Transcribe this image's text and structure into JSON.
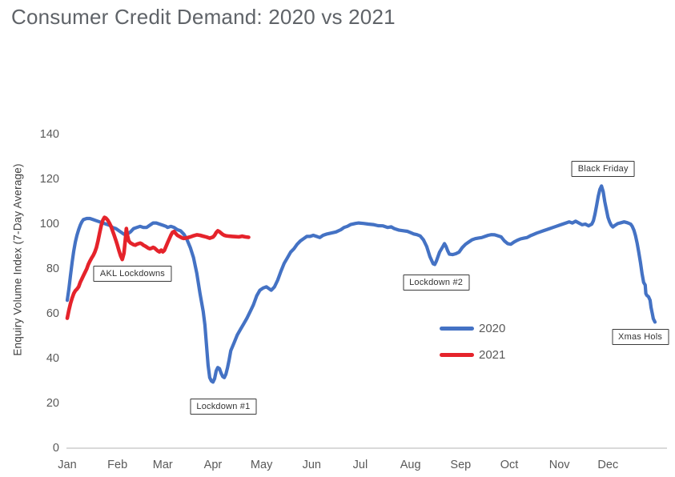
{
  "title": "Consumer Credit Demand: 2020 vs 2021",
  "colors": {
    "axis_line": "#D9D9D9",
    "text_gray": "#595959",
    "annotation_border": "#3A3A3A"
  },
  "chart_data": {
    "type": "line",
    "title": "Consumer Credit Demand: 2020 vs 2021",
    "xlabel": "",
    "ylabel": "Enquiry Volume Index (7-Day Average)",
    "x_unit": "day-of-year",
    "months": [
      "Jan",
      "Feb",
      "Mar",
      "Apr",
      "May",
      "Jun",
      "Jul",
      "Aug",
      "Sep",
      "Oct",
      "Nov",
      "Dec"
    ],
    "month_start_day": [
      0,
      31,
      59,
      90,
      120,
      151,
      181,
      212,
      243,
      273,
      304,
      334
    ],
    "y_ticks": [
      0,
      20,
      40,
      60,
      80,
      100,
      120,
      140
    ],
    "ylim": [
      0,
      140
    ],
    "grid": false,
    "legend_position": "center-right",
    "series": [
      {
        "name": "2020",
        "color": "#4472C4",
        "points": [
          [
            0,
            66
          ],
          [
            1,
            71
          ],
          [
            2,
            77
          ],
          [
            3,
            83
          ],
          [
            4,
            88
          ],
          [
            5,
            92
          ],
          [
            6,
            95
          ],
          [
            7,
            97.5
          ],
          [
            8,
            99.5
          ],
          [
            9,
            101
          ],
          [
            10,
            102
          ],
          [
            12,
            102.5
          ],
          [
            14,
            102.5
          ],
          [
            16,
            102
          ],
          [
            18,
            101.5
          ],
          [
            20,
            101
          ],
          [
            22,
            100.5
          ],
          [
            24,
            100
          ],
          [
            26,
            99.5
          ],
          [
            28,
            98.5
          ],
          [
            30,
            98
          ],
          [
            31,
            97.5
          ],
          [
            33,
            96.5
          ],
          [
            35,
            95.5
          ],
          [
            37,
            95.5
          ],
          [
            39,
            96.5
          ],
          [
            41,
            98
          ],
          [
            43,
            98.5
          ],
          [
            45,
            99
          ],
          [
            47,
            98.5
          ],
          [
            49,
            98.5
          ],
          [
            51,
            99.5
          ],
          [
            53,
            100.5
          ],
          [
            55,
            100.5
          ],
          [
            57,
            100
          ],
          [
            59,
            99.5
          ],
          [
            61,
            99
          ],
          [
            62,
            98.5
          ],
          [
            64,
            99
          ],
          [
            66,
            98.5
          ],
          [
            68,
            97.5
          ],
          [
            70,
            97
          ],
          [
            72,
            95.5
          ],
          [
            74,
            93
          ],
          [
            76,
            89.5
          ],
          [
            78,
            85
          ],
          [
            80,
            78
          ],
          [
            82,
            69
          ],
          [
            84,
            61
          ],
          [
            85,
            55
          ],
          [
            86,
            46
          ],
          [
            87,
            37
          ],
          [
            88,
            31.5
          ],
          [
            89,
            30
          ],
          [
            90,
            29.5
          ],
          [
            91,
            31
          ],
          [
            92,
            34.5
          ],
          [
            93,
            36
          ],
          [
            94,
            35.5
          ],
          [
            95,
            33.5
          ],
          [
            96,
            32
          ],
          [
            97,
            31.5
          ],
          [
            98,
            33
          ],
          [
            99,
            36
          ],
          [
            100,
            39.5
          ],
          [
            101,
            43.5
          ],
          [
            103,
            47
          ],
          [
            105,
            50.5
          ],
          [
            107,
            53
          ],
          [
            109,
            55.5
          ],
          [
            111,
            58
          ],
          [
            113,
            61
          ],
          [
            115,
            64
          ],
          [
            117,
            68
          ],
          [
            119,
            70.5
          ],
          [
            121,
            71.5
          ],
          [
            123,
            72
          ],
          [
            125,
            71
          ],
          [
            126,
            70.5
          ],
          [
            128,
            72
          ],
          [
            130,
            75
          ],
          [
            132,
            79
          ],
          [
            134,
            82.5
          ],
          [
            136,
            85
          ],
          [
            138,
            87.5
          ],
          [
            140,
            89
          ],
          [
            142,
            91
          ],
          [
            144,
            92.5
          ],
          [
            146,
            93.5
          ],
          [
            148,
            94.5
          ],
          [
            150,
            94.5
          ],
          [
            152,
            95
          ],
          [
            154,
            94.5
          ],
          [
            156,
            94
          ],
          [
            158,
            95
          ],
          [
            160,
            95.5
          ],
          [
            163,
            96
          ],
          [
            166,
            96.5
          ],
          [
            169,
            97.5
          ],
          [
            171,
            98.5
          ],
          [
            173,
            99
          ],
          [
            175,
            99.8
          ],
          [
            178,
            100.3
          ],
          [
            180,
            100.5
          ],
          [
            183,
            100.3
          ],
          [
            186,
            100
          ],
          [
            189,
            99.8
          ],
          [
            192,
            99.3
          ],
          [
            195,
            99.2
          ],
          [
            198,
            98.5
          ],
          [
            200,
            98.8
          ],
          [
            202,
            98
          ],
          [
            205,
            97.3
          ],
          [
            208,
            97
          ],
          [
            210,
            96.8
          ],
          [
            212,
            96.2
          ],
          [
            214,
            95.6
          ],
          [
            216,
            95.3
          ],
          [
            218,
            94.7
          ],
          [
            220,
            93
          ],
          [
            222,
            90
          ],
          [
            224,
            85.5
          ],
          [
            226,
            82.3
          ],
          [
            227,
            82
          ],
          [
            228,
            83.5
          ],
          [
            230,
            87.5
          ],
          [
            232,
            90
          ],
          [
            233,
            91.3
          ],
          [
            234,
            90
          ],
          [
            235,
            88
          ],
          [
            236,
            86.6
          ],
          [
            238,
            86.4
          ],
          [
            240,
            86.8
          ],
          [
            242,
            87.5
          ],
          [
            244,
            89.5
          ],
          [
            246,
            91
          ],
          [
            248,
            92
          ],
          [
            250,
            93
          ],
          [
            252,
            93.5
          ],
          [
            254,
            93.8
          ],
          [
            256,
            94
          ],
          [
            258,
            94.5
          ],
          [
            260,
            95
          ],
          [
            262,
            95.3
          ],
          [
            264,
            95.2
          ],
          [
            266,
            94.8
          ],
          [
            268,
            94.3
          ],
          [
            270,
            92.5
          ],
          [
            272,
            91.3
          ],
          [
            274,
            91
          ],
          [
            276,
            92
          ],
          [
            278,
            92.8
          ],
          [
            280,
            93.4
          ],
          [
            282,
            93.7
          ],
          [
            284,
            94
          ],
          [
            286,
            94.8
          ],
          [
            288,
            95.4
          ],
          [
            290,
            96
          ],
          [
            292,
            96.5
          ],
          [
            294,
            97
          ],
          [
            296,
            97.5
          ],
          [
            298,
            98
          ],
          [
            300,
            98.5
          ],
          [
            302,
            99
          ],
          [
            304,
            99.5
          ],
          [
            306,
            100
          ],
          [
            308,
            100.5
          ],
          [
            310,
            101
          ],
          [
            312,
            100.5
          ],
          [
            314,
            101.3
          ],
          [
            316,
            100.5
          ],
          [
            318,
            99.7
          ],
          [
            320,
            100
          ],
          [
            322,
            99.2
          ],
          [
            324,
            100
          ],
          [
            325,
            101.5
          ],
          [
            326,
            104.5
          ],
          [
            327,
            108.5
          ],
          [
            328,
            112.5
          ],
          [
            329,
            115.5
          ],
          [
            330,
            117
          ],
          [
            331,
            114.5
          ],
          [
            332,
            110
          ],
          [
            333,
            106.5
          ],
          [
            334,
            103
          ],
          [
            335,
            101
          ],
          [
            336,
            99.5
          ],
          [
            337,
            98.7
          ],
          [
            338,
            99.3
          ],
          [
            340,
            100.2
          ],
          [
            342,
            100.6
          ],
          [
            344,
            101
          ],
          [
            346,
            100.6
          ],
          [
            348,
            100
          ],
          [
            349,
            99
          ],
          [
            350,
            97.3
          ],
          [
            351,
            94.8
          ],
          [
            352,
            91.5
          ],
          [
            353,
            87.5
          ],
          [
            354,
            83
          ],
          [
            355,
            78
          ],
          [
            356,
            74
          ],
          [
            357,
            72.8
          ],
          [
            357.4,
            69
          ],
          [
            358,
            68.2
          ],
          [
            359,
            67.6
          ],
          [
            360,
            66
          ],
          [
            360.6,
            62.8
          ],
          [
            361.4,
            60
          ],
          [
            362,
            57.8
          ],
          [
            363,
            56.3
          ]
        ]
      },
      {
        "name": "2021",
        "color": "#E5232B",
        "points": [
          [
            0,
            58
          ],
          [
            1,
            61.5
          ],
          [
            2,
            64.5
          ],
          [
            3,
            67
          ],
          [
            4,
            69
          ],
          [
            5,
            70.3
          ],
          [
            6,
            71
          ],
          [
            7,
            72
          ],
          [
            8,
            74
          ],
          [
            9,
            75.5
          ],
          [
            10,
            77
          ],
          [
            11,
            78.5
          ],
          [
            12,
            80
          ],
          [
            13,
            82
          ],
          [
            14,
            83.5
          ],
          [
            15,
            84.8
          ],
          [
            16,
            86
          ],
          [
            17,
            87.5
          ],
          [
            18,
            89.5
          ],
          [
            19,
            92.5
          ],
          [
            20,
            96
          ],
          [
            21,
            99.5
          ],
          [
            22,
            101.8
          ],
          [
            23,
            103
          ],
          [
            24,
            102.6
          ],
          [
            25,
            101.8
          ],
          [
            26,
            100.5
          ],
          [
            27,
            99
          ],
          [
            28,
            97
          ],
          [
            29,
            95
          ],
          [
            30,
            92.8
          ],
          [
            31,
            90.5
          ],
          [
            32,
            88
          ],
          [
            33,
            85.8
          ],
          [
            34,
            84.2
          ],
          [
            35,
            87
          ],
          [
            36,
            94
          ],
          [
            36.5,
            98
          ],
          [
            37,
            95.5
          ],
          [
            38,
            92.5
          ],
          [
            39,
            91.6
          ],
          [
            40,
            91.2
          ],
          [
            41,
            90.8
          ],
          [
            42,
            90.6
          ],
          [
            43,
            91
          ],
          [
            44,
            91.3
          ],
          [
            45,
            91.5
          ],
          [
            46,
            91.2
          ],
          [
            47,
            90.6
          ],
          [
            48,
            90.2
          ],
          [
            49,
            89.8
          ],
          [
            50,
            89.3
          ],
          [
            51,
            89
          ],
          [
            52,
            89.2
          ],
          [
            53,
            89.6
          ],
          [
            54,
            89.3
          ],
          [
            55,
            88.6
          ],
          [
            56,
            88
          ],
          [
            57,
            87.6
          ],
          [
            58,
            88.4
          ],
          [
            59,
            87.6
          ],
          [
            60,
            88.3
          ],
          [
            61,
            90
          ],
          [
            62,
            91.8
          ],
          [
            63,
            93.4
          ],
          [
            64,
            95
          ],
          [
            65,
            96.3
          ],
          [
            66,
            96.7
          ],
          [
            67,
            95.8
          ],
          [
            68,
            95
          ],
          [
            69,
            94.6
          ],
          [
            70,
            94.2
          ],
          [
            71,
            93.8
          ],
          [
            72,
            93.6
          ],
          [
            74,
            93.9
          ],
          [
            76,
            94.3
          ],
          [
            78,
            94.8
          ],
          [
            80,
            95.2
          ],
          [
            82,
            95
          ],
          [
            84,
            94.6
          ],
          [
            86,
            94.2
          ],
          [
            88,
            93.7
          ],
          [
            90,
            94.2
          ],
          [
            91,
            95
          ],
          [
            92,
            96.2
          ],
          [
            93,
            97
          ],
          [
            94,
            96.6
          ],
          [
            95,
            96
          ],
          [
            96,
            95.4
          ],
          [
            97,
            95
          ],
          [
            98,
            94.8
          ],
          [
            100,
            94.6
          ],
          [
            102,
            94.5
          ],
          [
            104,
            94.4
          ],
          [
            106,
            94.3
          ],
          [
            108,
            94.6
          ],
          [
            110,
            94.3
          ],
          [
            112,
            94.1
          ]
        ]
      }
    ],
    "annotations": [
      {
        "label": "AKL Lockdowns",
        "day": 40.3,
        "value": 78
      },
      {
        "label": "Lockdown #1",
        "day": 96.4,
        "value": 18.4
      },
      {
        "label": "Lockdown #2",
        "day": 227.8,
        "value": 74.1
      },
      {
        "label": "Black Friday",
        "day": 331,
        "value": 124.5
      },
      {
        "label": "Xmas Hols",
        "day": 353.9,
        "value": 49.8
      }
    ]
  }
}
